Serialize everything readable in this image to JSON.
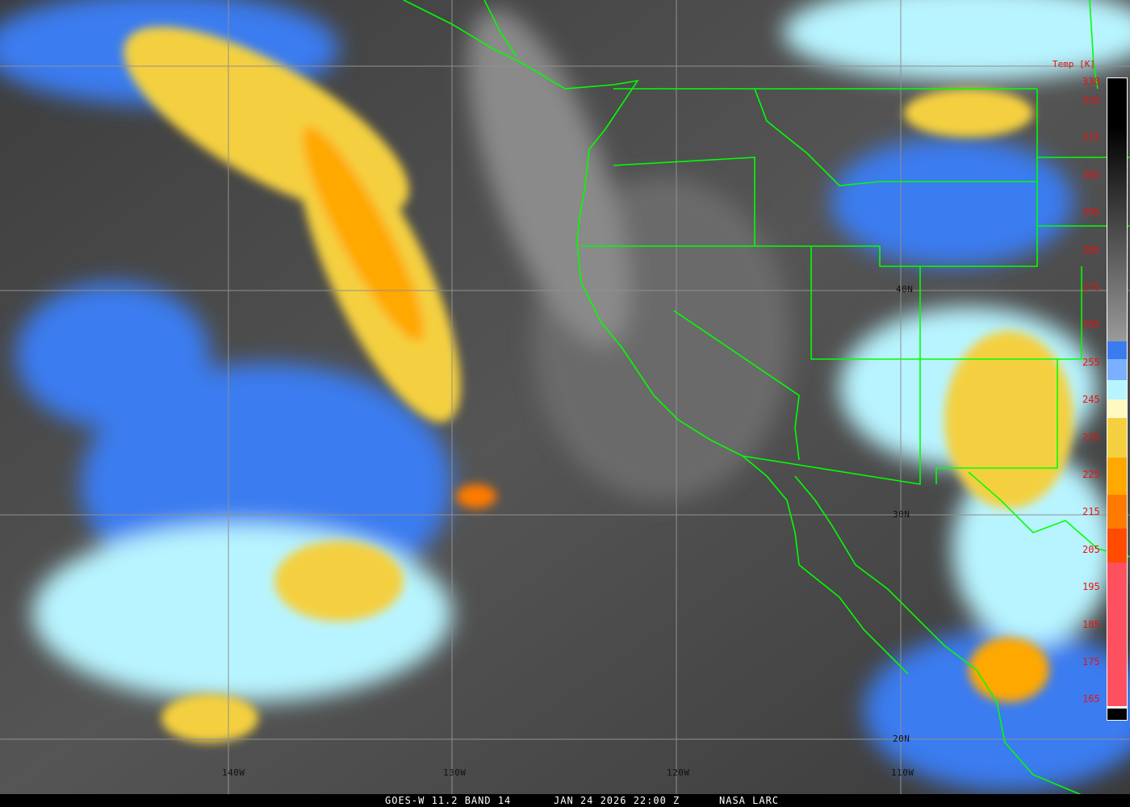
{
  "map": {
    "title_unit_label": "Temp [K]",
    "colorbar_ticks": [
      "330",
      "325",
      "315",
      "305",
      "295",
      "285",
      "275",
      "265",
      "255",
      "245",
      "235",
      "225",
      "215",
      "205",
      "195",
      "185",
      "175",
      "165"
    ],
    "colorbar_range_k": [
      165,
      330
    ],
    "lat_labels": [
      "40N",
      "30N",
      "20N"
    ],
    "lon_labels": [
      "140W",
      "130W",
      "120W",
      "110W"
    ],
    "colors": {
      "coastline": "#00ff00",
      "grid": "#909090",
      "tick_label": "#ee1111",
      "background": "#4a4a4a"
    }
  },
  "footer": {
    "satellite": "GOES-W 11.2 BAND 14",
    "datetime": "JAN 24 2026 22:00 Z",
    "source": "NASA LARC"
  }
}
